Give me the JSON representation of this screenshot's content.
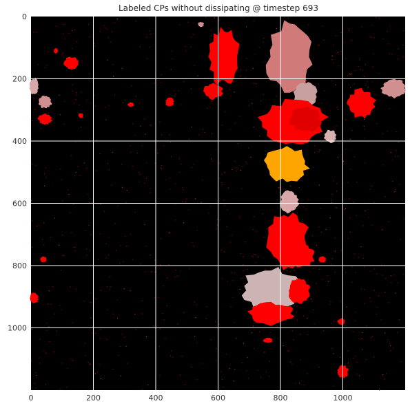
{
  "chart_data": {
    "type": "heatmap",
    "title": "Labeled CPs without dissipating @ timestep 693",
    "xlabel": "",
    "ylabel": "",
    "xlim": [
      0,
      1200
    ],
    "ylim": [
      1200,
      0
    ],
    "x_ticks": [
      "0",
      "200",
      "400",
      "600",
      "800",
      "1000"
    ],
    "y_ticks": [
      "0",
      "200",
      "400",
      "600",
      "800",
      "1000"
    ],
    "x_tick_values": [
      0,
      200,
      400,
      600,
      800,
      1000
    ],
    "y_tick_values": [
      0,
      200,
      400,
      600,
      800,
      1000
    ],
    "grid": true,
    "background_color": "#000000",
    "grid_color": "#ffffff",
    "regions": [
      {
        "label": "red",
        "color": "#ff0000",
        "center": [
          620,
          130
        ],
        "rx": 50,
        "ry": 90
      },
      {
        "label": "red",
        "color": "#ff0000",
        "center": [
          585,
          240
        ],
        "rx": 30,
        "ry": 25
      },
      {
        "label": "rose",
        "color": "#d07a7a",
        "center": [
          830,
          130
        ],
        "rx": 75,
        "ry": 110
      },
      {
        "label": "rose-light",
        "color": "#c9a0a0",
        "center": [
          880,
          250
        ],
        "rx": 40,
        "ry": 40
      },
      {
        "label": "red",
        "color": "#ff0000",
        "center": [
          840,
          340
        ],
        "rx": 105,
        "ry": 70
      },
      {
        "label": "red-dark",
        "color": "#e00000",
        "center": [
          880,
          330
        ],
        "rx": 50,
        "ry": 40
      },
      {
        "label": "red",
        "color": "#ff0000",
        "center": [
          1060,
          280
        ],
        "rx": 45,
        "ry": 45
      },
      {
        "label": "rose-light",
        "color": "#d09090",
        "center": [
          1165,
          230
        ],
        "rx": 40,
        "ry": 30
      },
      {
        "label": "rose-light",
        "color": "#d8b0b0",
        "center": [
          960,
          385
        ],
        "rx": 20,
        "ry": 20
      },
      {
        "label": "orange",
        "color": "#ffa500",
        "center": [
          820,
          475
        ],
        "rx": 70,
        "ry": 55
      },
      {
        "label": "rose-light",
        "color": "#d8a8a8",
        "center": [
          830,
          595
        ],
        "rx": 30,
        "ry": 35
      },
      {
        "label": "red",
        "color": "#ff0000",
        "center": [
          825,
          720
        ],
        "rx": 65,
        "ry": 90
      },
      {
        "label": "red",
        "color": "#ff0000",
        "center": [
          870,
          770
        ],
        "rx": 40,
        "ry": 35
      },
      {
        "label": "pale-pink",
        "color": "#ccb4b4",
        "center": [
          770,
          880
        ],
        "rx": 95,
        "ry": 70
      },
      {
        "label": "red",
        "color": "#ff0000",
        "center": [
          770,
          955
        ],
        "rx": 75,
        "ry": 35
      },
      {
        "label": "red",
        "color": "#ff0000",
        "center": [
          860,
          880
        ],
        "rx": 35,
        "ry": 40
      },
      {
        "label": "red",
        "color": "#ff0000",
        "center": [
          130,
          150
        ],
        "rx": 25,
        "ry": 20
      },
      {
        "label": "red",
        "color": "#ff0000",
        "center": [
          45,
          330
        ],
        "rx": 22,
        "ry": 18
      },
      {
        "label": "rose-light",
        "color": "#d09090",
        "center": [
          45,
          275
        ],
        "rx": 22,
        "ry": 20
      },
      {
        "label": "rose-light",
        "color": "#d8a8a8",
        "center": [
          10,
          225
        ],
        "rx": 15,
        "ry": 28
      },
      {
        "label": "red",
        "color": "#ff0000",
        "center": [
          445,
          275
        ],
        "rx": 14,
        "ry": 14
      },
      {
        "label": "red",
        "color": "#ff0000",
        "center": [
          160,
          318
        ],
        "rx": 8,
        "ry": 8
      },
      {
        "label": "red",
        "color": "#ff0000",
        "center": [
          320,
          283
        ],
        "rx": 10,
        "ry": 7
      },
      {
        "label": "red",
        "color": "#ff0000",
        "center": [
          80,
          110
        ],
        "rx": 7,
        "ry": 9
      },
      {
        "label": "red",
        "color": "#ff0000",
        "center": [
          1000,
          1140
        ],
        "rx": 18,
        "ry": 20
      },
      {
        "label": "red",
        "color": "#ff0000",
        "center": [
          935,
          780
        ],
        "rx": 12,
        "ry": 10
      },
      {
        "label": "red",
        "color": "#ff0000",
        "center": [
          10,
          905
        ],
        "rx": 14,
        "ry": 18
      },
      {
        "label": "red",
        "color": "#ff0000",
        "center": [
          995,
          980
        ],
        "rx": 12,
        "ry": 10
      },
      {
        "label": "red",
        "color": "#ff0000",
        "center": [
          760,
          1040
        ],
        "rx": 15,
        "ry": 8
      },
      {
        "label": "rose-light",
        "color": "#d09090",
        "center": [
          545,
          25
        ],
        "rx": 10,
        "ry": 8
      },
      {
        "label": "red",
        "color": "#ff0000",
        "center": [
          40,
          780
        ],
        "rx": 10,
        "ry": 9
      }
    ]
  }
}
